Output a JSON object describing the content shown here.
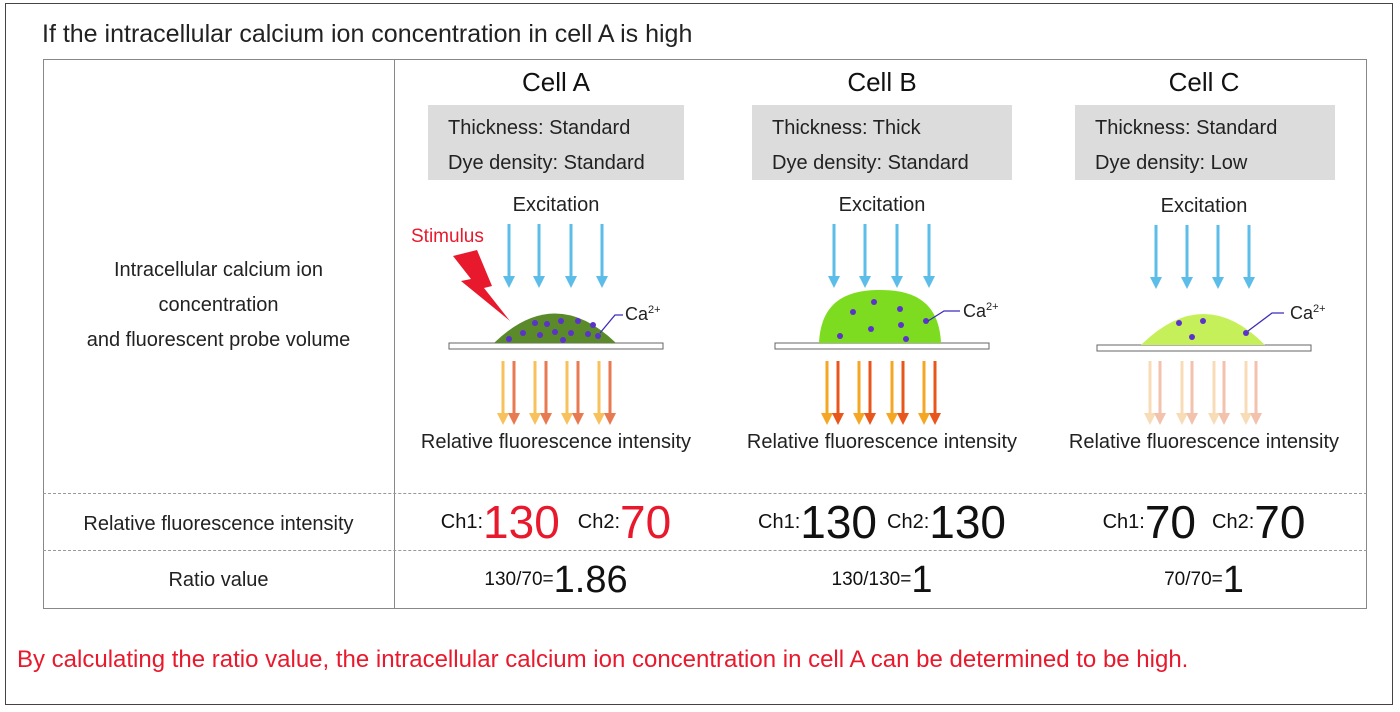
{
  "title": "If the intracellular calcium ion concentration in cell A is high",
  "row_labels": {
    "diagram": [
      "Intracellular calcium ion",
      "concentration",
      "and fluorescent probe volume"
    ],
    "intensity": "Relative fluorescence intensity",
    "ratio": "Ratio value"
  },
  "common": {
    "excitation": "Excitation",
    "relative_fluorescence": "Relative fluorescence intensity",
    "ca_label": "Ca",
    "ca_charge": "2+",
    "stimulus": "Stimulus",
    "ch1": "Ch1:",
    "ch2": "Ch2:"
  },
  "cells": [
    {
      "name": "Cell A",
      "thickness": "Thickness: Standard",
      "dye": "Dye density: Standard",
      "ch1_value": "130",
      "ch2_value": "70",
      "ratio_expr": "130/70=",
      "ratio_value": "1.86"
    },
    {
      "name": "Cell B",
      "thickness": "Thickness: Thick",
      "dye": "Dye density: Standard",
      "ch1_value": "130",
      "ch2_value": "130",
      "ratio_expr": "130/130=",
      "ratio_value": "1"
    },
    {
      "name": "Cell C",
      "thickness": "Thickness: Standard",
      "dye": "Dye density: Low",
      "ch1_value": "70",
      "ch2_value": "70",
      "ratio_expr": "70/70=",
      "ratio_value": "1"
    }
  ],
  "conclusion": "By calculating the ratio value, the intracellular calcium ion concentration in cell A can be determined to be high.",
  "colors": {
    "highlight_red": "#e8192c",
    "excitation_arrow": "#5bbde8",
    "cell_a_fill": "#5a8a2a",
    "cell_b_fill": "#7ddc1f",
    "cell_c_fill": "#c6f05a",
    "ion_dot": "#5b33cc"
  }
}
